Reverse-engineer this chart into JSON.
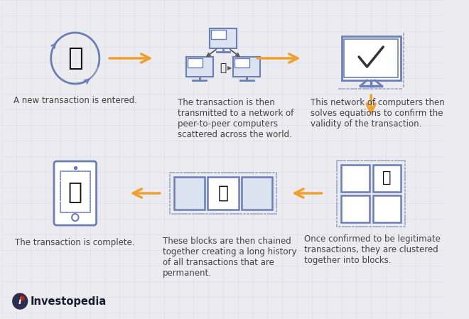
{
  "bg_color": "#ebebf0",
  "icon_color": "#6b7fb5",
  "icon_fill": "#dce3f0",
  "arrow_color": "#f0a030",
  "text_color": "#444444",
  "bitcoin_color": "#111111",
  "border_color": "#6b7fb5",
  "step1_text": "A new transaction is entered.",
  "step2_text": "The transaction is then\ntransmitted to a network of\npeer-to-peer computers\nscattered across the world.",
  "step3_text": "This network of computers then\nsolves equations to confirm the\nvalidity of the transaction.",
  "step4_text": "Once confirmed to be legitimate\ntransactions, they are clustered\ntogether into blocks.",
  "step5_text": "These blocks are then chained\ntogether creating a long history\nof all transactions that are\npermanent.",
  "step6_text": "The transaction is complete.",
  "credit": "Investopedia",
  "grid_color": "#d0d0de",
  "font_size_step": 8.5,
  "font_size_credit": 10.5
}
